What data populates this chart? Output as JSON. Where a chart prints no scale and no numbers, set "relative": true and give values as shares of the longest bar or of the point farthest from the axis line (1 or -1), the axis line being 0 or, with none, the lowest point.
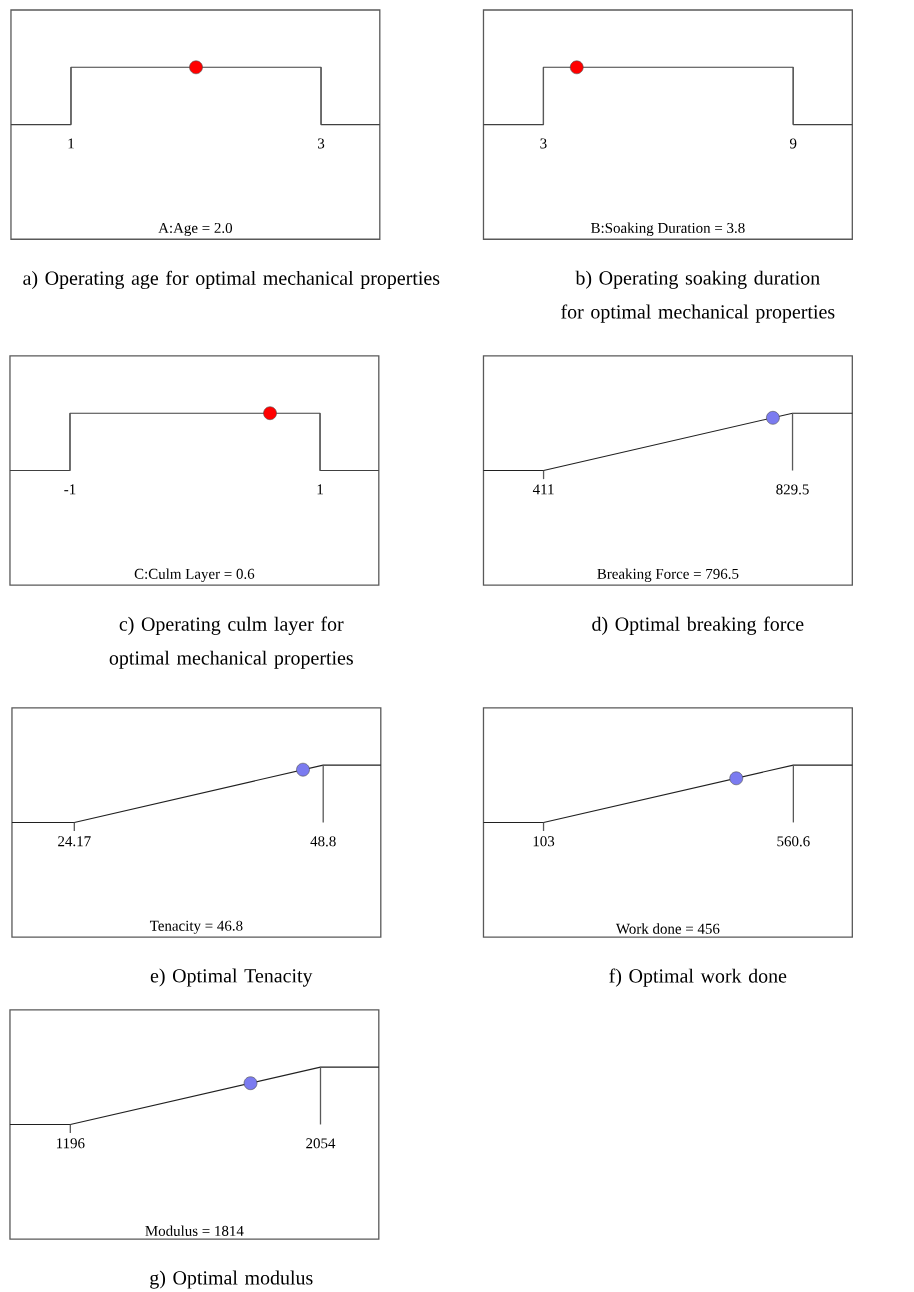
{
  "chart_data": [
    {
      "type": "line",
      "title": "a) Operating age for optimal mechanical properties",
      "xlabel": "A:Age = 2.0",
      "relative": true,
      "xlim": [
        0.52,
        3.47
      ],
      "xticks": [
        1,
        3
      ],
      "series": [
        {
          "color": "#404040",
          "x": [
            0.52,
            1,
            1,
            3,
            3,
            3.47
          ],
          "values": [
            0,
            0,
            1,
            1,
            0,
            0
          ]
        },
        {
          "type": "scatter",
          "marker": "circle",
          "color": "#ff0000",
          "x": [
            2.0
          ],
          "values": [
            1
          ]
        }
      ]
    },
    {
      "type": "line",
      "title": "b) Operating soaking duration for optimal mechanical properties",
      "xlabel": "B:Soaking Duration = 3.8",
      "relative": true,
      "xlim": [
        1.56,
        10.42
      ],
      "xticks": [
        3,
        9
      ],
      "series": [
        {
          "color": "#404040",
          "x": [
            1.56,
            3,
            3,
            9,
            9,
            10.42
          ],
          "values": [
            0,
            0,
            1,
            1,
            0,
            0
          ]
        },
        {
          "type": "scatter",
          "marker": "circle",
          "color": "#ff0000",
          "x": [
            3.8
          ],
          "values": [
            1
          ]
        }
      ]
    },
    {
      "type": "line",
      "title": "c) Operating culm layer for optimal mechanical properties",
      "xlabel": "C:Culm Layer = 0.6",
      "relative": true,
      "xlim": [
        -1.48,
        1.47
      ],
      "xticks": [
        -1,
        1
      ],
      "series": [
        {
          "color": "#404040",
          "x": [
            -1.48,
            -1,
            -1,
            1,
            1,
            1.47
          ],
          "values": [
            0,
            0,
            1,
            1,
            0,
            0
          ]
        },
        {
          "type": "scatter",
          "marker": "circle",
          "color": "#ff0000",
          "x": [
            0.6
          ],
          "values": [
            1
          ]
        }
      ]
    },
    {
      "type": "line",
      "title": "d) Optimal breaking force",
      "xlabel": "Breaking Force = 796.5",
      "relative": true,
      "xlim": [
        310,
        930
      ],
      "xticks": [
        411,
        829.5
      ],
      "series": [
        {
          "color": "#202020",
          "x": [
            310,
            411,
            829.5,
            930
          ],
          "values": [
            0,
            0,
            1,
            1
          ]
        },
        {
          "type": "scatter",
          "marker": "circle",
          "color": "#7b7bf0",
          "x": [
            796.5
          ],
          "values": [
            0.92
          ]
        }
      ]
    },
    {
      "type": "line",
      "title": "e) Optimal Tenacity",
      "xlabel": "Tenacity = 46.8",
      "relative": true,
      "xlim": [
        18,
        54.5
      ],
      "xticks": [
        24.17,
        48.8
      ],
      "series": [
        {
          "color": "#202020",
          "x": [
            18,
            24.17,
            48.8,
            54.5
          ],
          "values": [
            0,
            0,
            1,
            1
          ]
        },
        {
          "type": "scatter",
          "marker": "circle",
          "color": "#7b7bf0",
          "x": [
            46.8
          ],
          "values": [
            0.92
          ]
        }
      ]
    },
    {
      "type": "line",
      "title": "f) Optimal work done",
      "xlabel": "Work done = 456",
      "relative": true,
      "xlim": [
        -7,
        668.6
      ],
      "xticks": [
        103,
        560.6
      ],
      "series": [
        {
          "color": "#202020",
          "x": [
            -7,
            103,
            560.6,
            668.6
          ],
          "values": [
            0,
            0,
            1,
            1
          ]
        },
        {
          "type": "scatter",
          "marker": "circle",
          "color": "#7b7bf0",
          "x": [
            456
          ],
          "values": [
            0.77
          ]
        }
      ]
    },
    {
      "type": "line",
      "title": "g) Optimal modulus",
      "xlabel": "Modulus = 1814",
      "relative": true,
      "xlim": [
        989,
        2254
      ],
      "xticks": [
        1196,
        2054
      ],
      "series": [
        {
          "color": "#202020",
          "x": [
            989,
            1196,
            2054,
            2254
          ],
          "values": [
            0,
            0,
            1,
            1
          ]
        },
        {
          "type": "scatter",
          "marker": "circle",
          "color": "#7b7bf0",
          "x": [
            1814
          ],
          "values": [
            0.72
          ]
        }
      ]
    }
  ]
}
